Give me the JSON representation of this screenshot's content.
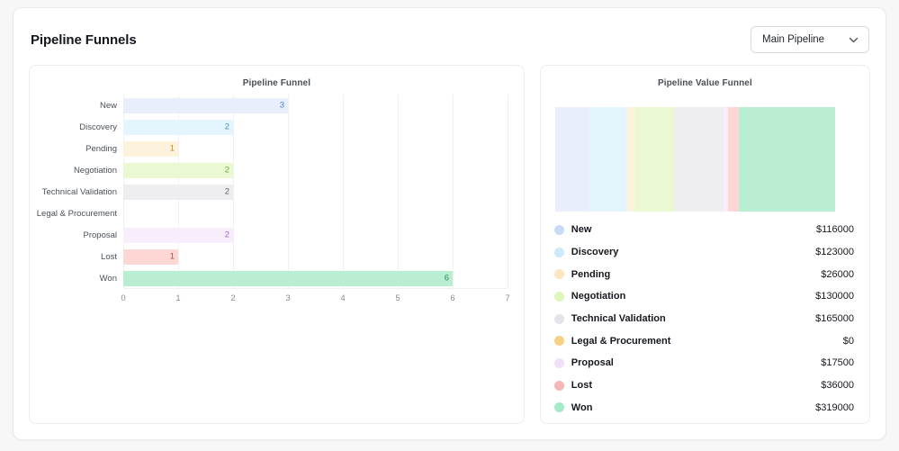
{
  "header": {
    "title": "Pipeline Funnels",
    "pipeline_select": {
      "value": "Main Pipeline"
    }
  },
  "chart_data": [
    {
      "type": "bar",
      "orientation": "horizontal",
      "title": "Pipeline Funnel",
      "categories": [
        "New",
        "Discovery",
        "Pending",
        "Negotiation",
        "Technical Validation",
        "Legal & Procurement",
        "Proposal",
        "Lost",
        "Won"
      ],
      "values": [
        3,
        2,
        1,
        2,
        2,
        0,
        2,
        1,
        6
      ],
      "xlabel": "",
      "ylabel": "",
      "xlim": [
        0,
        7
      ],
      "xticks": [
        "0",
        "1",
        "2",
        "3",
        "4",
        "5",
        "6",
        "7"
      ],
      "grid": "vertical",
      "bar_colors": [
        "#e8eefc",
        "#e4f5fd",
        "#fdf2db",
        "#eaf9d1",
        "#eeeef1",
        "#fdeccb",
        "#f7edfb",
        "#fcd7d3",
        "#b9eed2"
      ],
      "value_label_colors": [
        "#4e7fe1",
        "#4193b5",
        "#c9882e",
        "#79a83b",
        "#5f6368",
        "#c9882e",
        "#a964d4",
        "#a8524a",
        "#2f8a5e"
      ]
    },
    {
      "type": "bar",
      "variant": "stacked-funnel",
      "title": "Pipeline Value Funnel",
      "categories": [
        "New",
        "Discovery",
        "Pending",
        "Negotiation",
        "Technical Validation",
        "Legal & Procurement",
        "Proposal",
        "Lost",
        "Won"
      ],
      "values": [
        116000,
        123000,
        26000,
        130000,
        165000,
        0,
        17500,
        36000,
        319000
      ],
      "value_labels": [
        "$116000",
        "$123000",
        "$26000",
        "$130000",
        "$165000",
        "$0",
        "$17500",
        "$36000",
        "$319000"
      ],
      "segment_colors": [
        "#e8eefc",
        "#e4f5fd",
        "#fdf2db",
        "#eaf9d1",
        "#eeeef1",
        "#fdeccb",
        "#f7edfb",
        "#fcd7d3",
        "#b9eed2"
      ],
      "legend_dot_colors": [
        "#c8daf6",
        "#cdeafa",
        "#fbe6c0",
        "#ddf6bb",
        "#e4e5e9",
        "#f7d286",
        "#efdff8",
        "#f7b6b6",
        "#a3ebc6"
      ],
      "legend_position": "below"
    }
  ]
}
